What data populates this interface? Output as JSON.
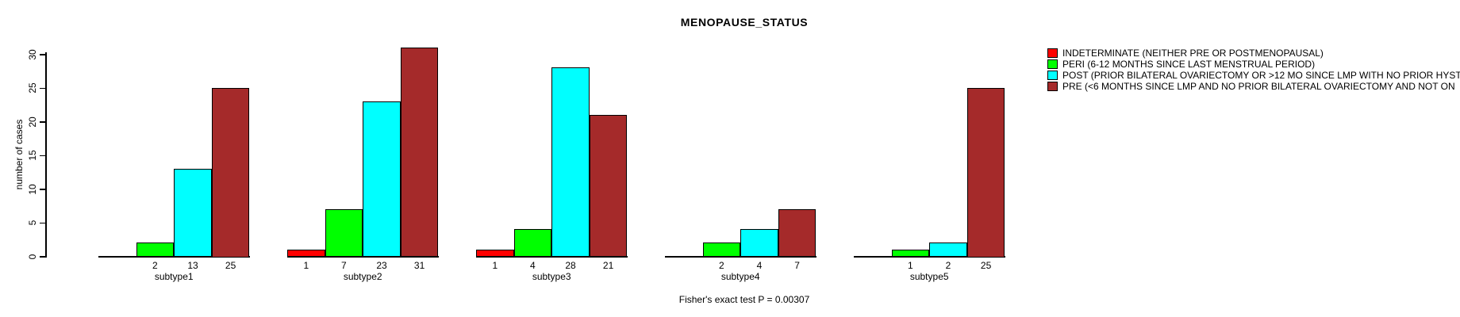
{
  "title": "MENOPAUSE_STATUS",
  "ylabel": "number of cases",
  "footer": "Fisher's exact test P = 0.00307",
  "colors": {
    "indeterminate": "#FF0000",
    "peri": "#00FF00",
    "post": "#00FFFF",
    "pre": "#A52A2A",
    "axis": "#000000",
    "background": "#FFFFFF"
  },
  "chart_data": {
    "type": "bar",
    "grouped": true,
    "title": "MENOPAUSE_STATUS",
    "ylabel": "number of cases",
    "xlabel": "",
    "categories": [
      "subtype1",
      "subtype2",
      "subtype3",
      "subtype4",
      "subtype5"
    ],
    "series": [
      {
        "name": "INDETERMINATE (NEITHER PRE OR POSTMENOPAUSAL)",
        "color": "#FF0000",
        "values": [
          0,
          1,
          1,
          0,
          0
        ]
      },
      {
        "name": "PERI (6-12 MONTHS SINCE LAST MENSTRUAL PERIOD)",
        "color": "#00FF00",
        "values": [
          2,
          7,
          4,
          2,
          1
        ]
      },
      {
        "name": "POST (PRIOR BILATERAL OVARIECTOMY OR >12 MO SINCE LMP WITH NO PRIOR HYST",
        "color": "#00FFFF",
        "values": [
          13,
          23,
          28,
          4,
          2
        ]
      },
      {
        "name": "PRE (<6 MONTHS SINCE LMP AND NO PRIOR BILATERAL OVARIECTOMY AND NOT ON",
        "color": "#A52A2A",
        "values": [
          25,
          31,
          21,
          7,
          25
        ]
      }
    ],
    "yticks": [
      0,
      5,
      10,
      15,
      20,
      25,
      30
    ],
    "ylim": [
      0,
      31
    ],
    "grid": false,
    "legend_position": "top-right",
    "bar_value_labels": "shown under each nonzero bar",
    "annotations": [
      "Fisher's exact test P = 0.00307"
    ]
  }
}
